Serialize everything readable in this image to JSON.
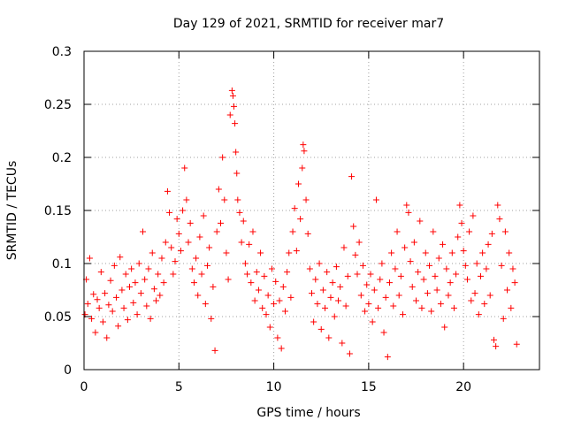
{
  "chart_data": {
    "type": "scatter",
    "title": "Day 129 of 2021, SRMTID for receiver mar7",
    "xlabel": "GPS time / hours",
    "ylabel": "SRMTID / TECUs",
    "xlim": [
      0,
      24
    ],
    "ylim": [
      0,
      0.3
    ],
    "xticks": [
      0,
      5,
      10,
      15,
      20
    ],
    "yticks": [
      0,
      0.05,
      0.1,
      0.15,
      0.2,
      0.25,
      0.3
    ],
    "xtick_labels": [
      "0",
      "5",
      "10",
      "15",
      "20"
    ],
    "ytick_labels": [
      "0",
      "0.05",
      "0.1",
      "0.15",
      "0.2",
      "0.25",
      "0.3"
    ],
    "grid": true,
    "marker": "+",
    "color": "#ff0000",
    "series": [
      {
        "name": "SRMTID",
        "points": [
          [
            0.05,
            0.052
          ],
          [
            0.12,
            0.085
          ],
          [
            0.2,
            0.062
          ],
          [
            0.3,
            0.105
          ],
          [
            0.4,
            0.048
          ],
          [
            0.5,
            0.071
          ],
          [
            0.6,
            0.035
          ],
          [
            0.7,
            0.066
          ],
          [
            0.8,
            0.058
          ],
          [
            0.9,
            0.092
          ],
          [
            1.0,
            0.045
          ],
          [
            1.1,
            0.072
          ],
          [
            1.2,
            0.03
          ],
          [
            1.3,
            0.061
          ],
          [
            1.4,
            0.084
          ],
          [
            1.5,
            0.055
          ],
          [
            1.6,
            0.098
          ],
          [
            1.7,
            0.068
          ],
          [
            1.8,
            0.041
          ],
          [
            1.9,
            0.106
          ],
          [
            2.0,
            0.075
          ],
          [
            2.1,
            0.058
          ],
          [
            2.2,
            0.09
          ],
          [
            2.3,
            0.047
          ],
          [
            2.4,
            0.078
          ],
          [
            2.5,
            0.095
          ],
          [
            2.6,
            0.063
          ],
          [
            2.7,
            0.082
          ],
          [
            2.8,
            0.052
          ],
          [
            2.9,
            0.1
          ],
          [
            3.0,
            0.072
          ],
          [
            3.1,
            0.13
          ],
          [
            3.2,
            0.085
          ],
          [
            3.3,
            0.06
          ],
          [
            3.4,
            0.095
          ],
          [
            3.5,
            0.048
          ],
          [
            3.6,
            0.11
          ],
          [
            3.7,
            0.076
          ],
          [
            3.8,
            0.065
          ],
          [
            3.9,
            0.09
          ],
          [
            4.0,
            0.07
          ],
          [
            4.1,
            0.105
          ],
          [
            4.2,
            0.082
          ],
          [
            4.3,
            0.12
          ],
          [
            4.4,
            0.168
          ],
          [
            4.5,
            0.148
          ],
          [
            4.6,
            0.115
          ],
          [
            4.7,
            0.09
          ],
          [
            4.8,
            0.102
          ],
          [
            4.9,
            0.142
          ],
          [
            5.0,
            0.128
          ],
          [
            5.1,
            0.112
          ],
          [
            5.2,
            0.15
          ],
          [
            5.3,
            0.19
          ],
          [
            5.4,
            0.16
          ],
          [
            5.5,
            0.12
          ],
          [
            5.6,
            0.138
          ],
          [
            5.7,
            0.095
          ],
          [
            5.8,
            0.082
          ],
          [
            5.9,
            0.105
          ],
          [
            6.0,
            0.07
          ],
          [
            6.1,
            0.125
          ],
          [
            6.2,
            0.09
          ],
          [
            6.3,
            0.145
          ],
          [
            6.4,
            0.062
          ],
          [
            6.5,
            0.098
          ],
          [
            6.6,
            0.115
          ],
          [
            6.7,
            0.048
          ],
          [
            6.8,
            0.078
          ],
          [
            6.9,
            0.018
          ],
          [
            7.0,
            0.13
          ],
          [
            7.1,
            0.17
          ],
          [
            7.2,
            0.138
          ],
          [
            7.3,
            0.2
          ],
          [
            7.4,
            0.16
          ],
          [
            7.5,
            0.11
          ],
          [
            7.6,
            0.085
          ],
          [
            7.7,
            0.24
          ],
          [
            7.8,
            0.263
          ],
          [
            7.85,
            0.258
          ],
          [
            7.9,
            0.248
          ],
          [
            7.95,
            0.232
          ],
          [
            8.0,
            0.205
          ],
          [
            8.05,
            0.185
          ],
          [
            8.1,
            0.16
          ],
          [
            8.2,
            0.148
          ],
          [
            8.3,
            0.12
          ],
          [
            8.4,
            0.14
          ],
          [
            8.5,
            0.1
          ],
          [
            8.6,
            0.09
          ],
          [
            8.7,
            0.118
          ],
          [
            8.8,
            0.082
          ],
          [
            8.9,
            0.13
          ],
          [
            9.0,
            0.065
          ],
          [
            9.1,
            0.092
          ],
          [
            9.2,
            0.075
          ],
          [
            9.3,
            0.11
          ],
          [
            9.4,
            0.058
          ],
          [
            9.5,
            0.088
          ],
          [
            9.6,
            0.052
          ],
          [
            9.7,
            0.07
          ],
          [
            9.8,
            0.04
          ],
          [
            9.9,
            0.095
          ],
          [
            10.0,
            0.062
          ],
          [
            10.1,
            0.083
          ],
          [
            10.2,
            0.03
          ],
          [
            10.3,
            0.065
          ],
          [
            10.4,
            0.02
          ],
          [
            10.5,
            0.078
          ],
          [
            10.6,
            0.055
          ],
          [
            10.7,
            0.092
          ],
          [
            10.8,
            0.11
          ],
          [
            10.9,
            0.068
          ],
          [
            11.0,
            0.13
          ],
          [
            11.1,
            0.152
          ],
          [
            11.2,
            0.112
          ],
          [
            11.3,
            0.175
          ],
          [
            11.4,
            0.142
          ],
          [
            11.5,
            0.19
          ],
          [
            11.55,
            0.212
          ],
          [
            11.6,
            0.206
          ],
          [
            11.7,
            0.16
          ],
          [
            11.8,
            0.128
          ],
          [
            11.9,
            0.095
          ],
          [
            12.0,
            0.072
          ],
          [
            12.1,
            0.045
          ],
          [
            12.2,
            0.085
          ],
          [
            12.3,
            0.062
          ],
          [
            12.4,
            0.1
          ],
          [
            12.5,
            0.038
          ],
          [
            12.6,
            0.075
          ],
          [
            12.7,
            0.058
          ],
          [
            12.8,
            0.092
          ],
          [
            12.9,
            0.03
          ],
          [
            13.0,
            0.068
          ],
          [
            13.1,
            0.082
          ],
          [
            13.2,
            0.05
          ],
          [
            13.3,
            0.097
          ],
          [
            13.4,
            0.065
          ],
          [
            13.5,
            0.078
          ],
          [
            13.6,
            0.025
          ],
          [
            13.7,
            0.115
          ],
          [
            13.8,
            0.06
          ],
          [
            13.9,
            0.088
          ],
          [
            14.0,
            0.015
          ],
          [
            14.1,
            0.182
          ],
          [
            14.2,
            0.135
          ],
          [
            14.3,
            0.108
          ],
          [
            14.4,
            0.09
          ],
          [
            14.5,
            0.12
          ],
          [
            14.6,
            0.07
          ],
          [
            14.7,
            0.098
          ],
          [
            14.8,
            0.055
          ],
          [
            14.9,
            0.08
          ],
          [
            15.0,
            0.062
          ],
          [
            15.1,
            0.09
          ],
          [
            15.2,
            0.045
          ],
          [
            15.3,
            0.075
          ],
          [
            15.4,
            0.16
          ],
          [
            15.5,
            0.058
          ],
          [
            15.6,
            0.085
          ],
          [
            15.7,
            0.1
          ],
          [
            15.8,
            0.035
          ],
          [
            15.9,
            0.068
          ],
          [
            16.0,
            0.012
          ],
          [
            16.1,
            0.082
          ],
          [
            16.2,
            0.11
          ],
          [
            16.3,
            0.06
          ],
          [
            16.4,
            0.095
          ],
          [
            16.5,
            0.13
          ],
          [
            16.6,
            0.07
          ],
          [
            16.7,
            0.088
          ],
          [
            16.8,
            0.052
          ],
          [
            16.9,
            0.115
          ],
          [
            17.0,
            0.155
          ],
          [
            17.1,
            0.148
          ],
          [
            17.2,
            0.102
          ],
          [
            17.3,
            0.078
          ],
          [
            17.4,
            0.12
          ],
          [
            17.5,
            0.065
          ],
          [
            17.6,
            0.092
          ],
          [
            17.7,
            0.14
          ],
          [
            17.8,
            0.058
          ],
          [
            17.9,
            0.085
          ],
          [
            18.0,
            0.11
          ],
          [
            18.1,
            0.072
          ],
          [
            18.2,
            0.098
          ],
          [
            18.3,
            0.055
          ],
          [
            18.4,
            0.13
          ],
          [
            18.5,
            0.088
          ],
          [
            18.6,
            0.075
          ],
          [
            18.7,
            0.105
          ],
          [
            18.8,
            0.062
          ],
          [
            18.9,
            0.118
          ],
          [
            19.0,
            0.04
          ],
          [
            19.1,
            0.095
          ],
          [
            19.2,
            0.07
          ],
          [
            19.3,
            0.082
          ],
          [
            19.4,
            0.11
          ],
          [
            19.5,
            0.058
          ],
          [
            19.6,
            0.09
          ],
          [
            19.7,
            0.125
          ],
          [
            19.8,
            0.155
          ],
          [
            19.9,
            0.138
          ],
          [
            20.0,
            0.112
          ],
          [
            20.1,
            0.098
          ],
          [
            20.2,
            0.085
          ],
          [
            20.3,
            0.13
          ],
          [
            20.4,
            0.065
          ],
          [
            20.5,
            0.145
          ],
          [
            20.6,
            0.072
          ],
          [
            20.7,
            0.1
          ],
          [
            20.8,
            0.052
          ],
          [
            20.9,
            0.088
          ],
          [
            21.0,
            0.11
          ],
          [
            21.1,
            0.062
          ],
          [
            21.2,
            0.095
          ],
          [
            21.3,
            0.118
          ],
          [
            21.4,
            0.07
          ],
          [
            21.5,
            0.128
          ],
          [
            21.6,
            0.028
          ],
          [
            21.7,
            0.022
          ],
          [
            21.8,
            0.155
          ],
          [
            21.9,
            0.142
          ],
          [
            22.0,
            0.098
          ],
          [
            22.1,
            0.048
          ],
          [
            22.2,
            0.13
          ],
          [
            22.3,
            0.075
          ],
          [
            22.4,
            0.11
          ],
          [
            22.5,
            0.058
          ],
          [
            22.6,
            0.095
          ],
          [
            22.7,
            0.082
          ],
          [
            22.8,
            0.024
          ]
        ]
      }
    ]
  }
}
